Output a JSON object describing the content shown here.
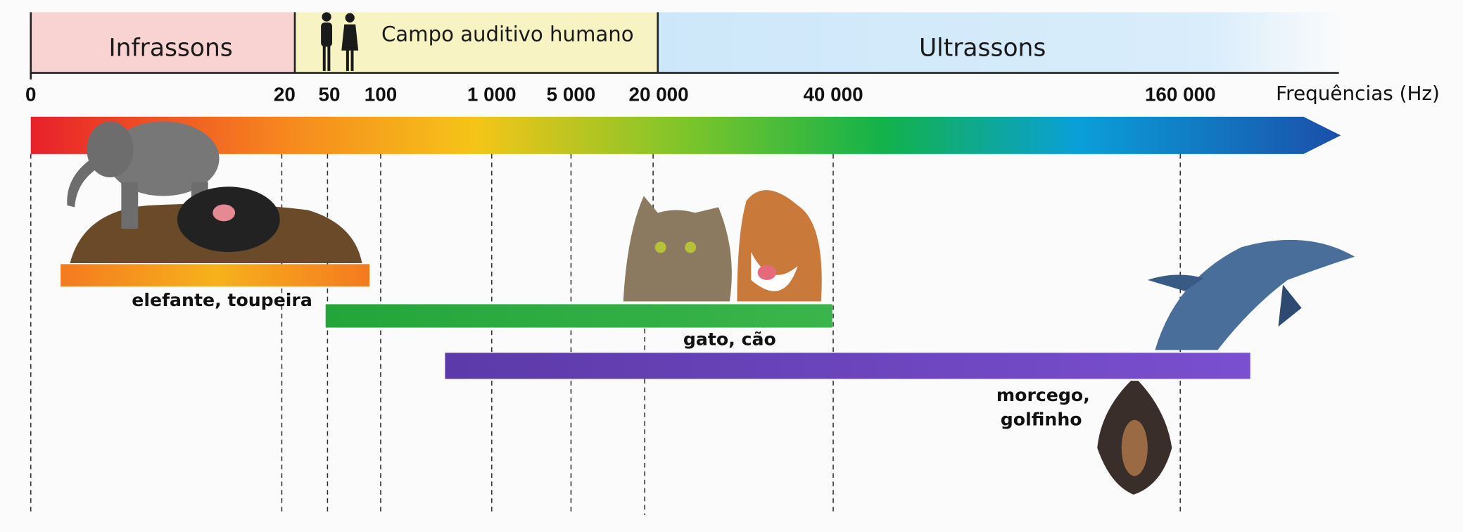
{
  "regions": [
    "Infrassons",
    "Campo auditivo humano",
    "Ultrassons"
  ],
  "axis": {
    "ticks": [
      "0",
      "20",
      "50",
      "100",
      "1 000",
      "5 000",
      "20 000",
      "40 000",
      "160 000"
    ],
    "label": "Frequências (Hz)"
  },
  "ranges": [
    {
      "label": [
        "elefante, toupeira"
      ]
    },
    {
      "label": [
        "gato, cão"
      ]
    },
    {
      "label": [
        "morcego,",
        "golfinho"
      ]
    }
  ]
}
